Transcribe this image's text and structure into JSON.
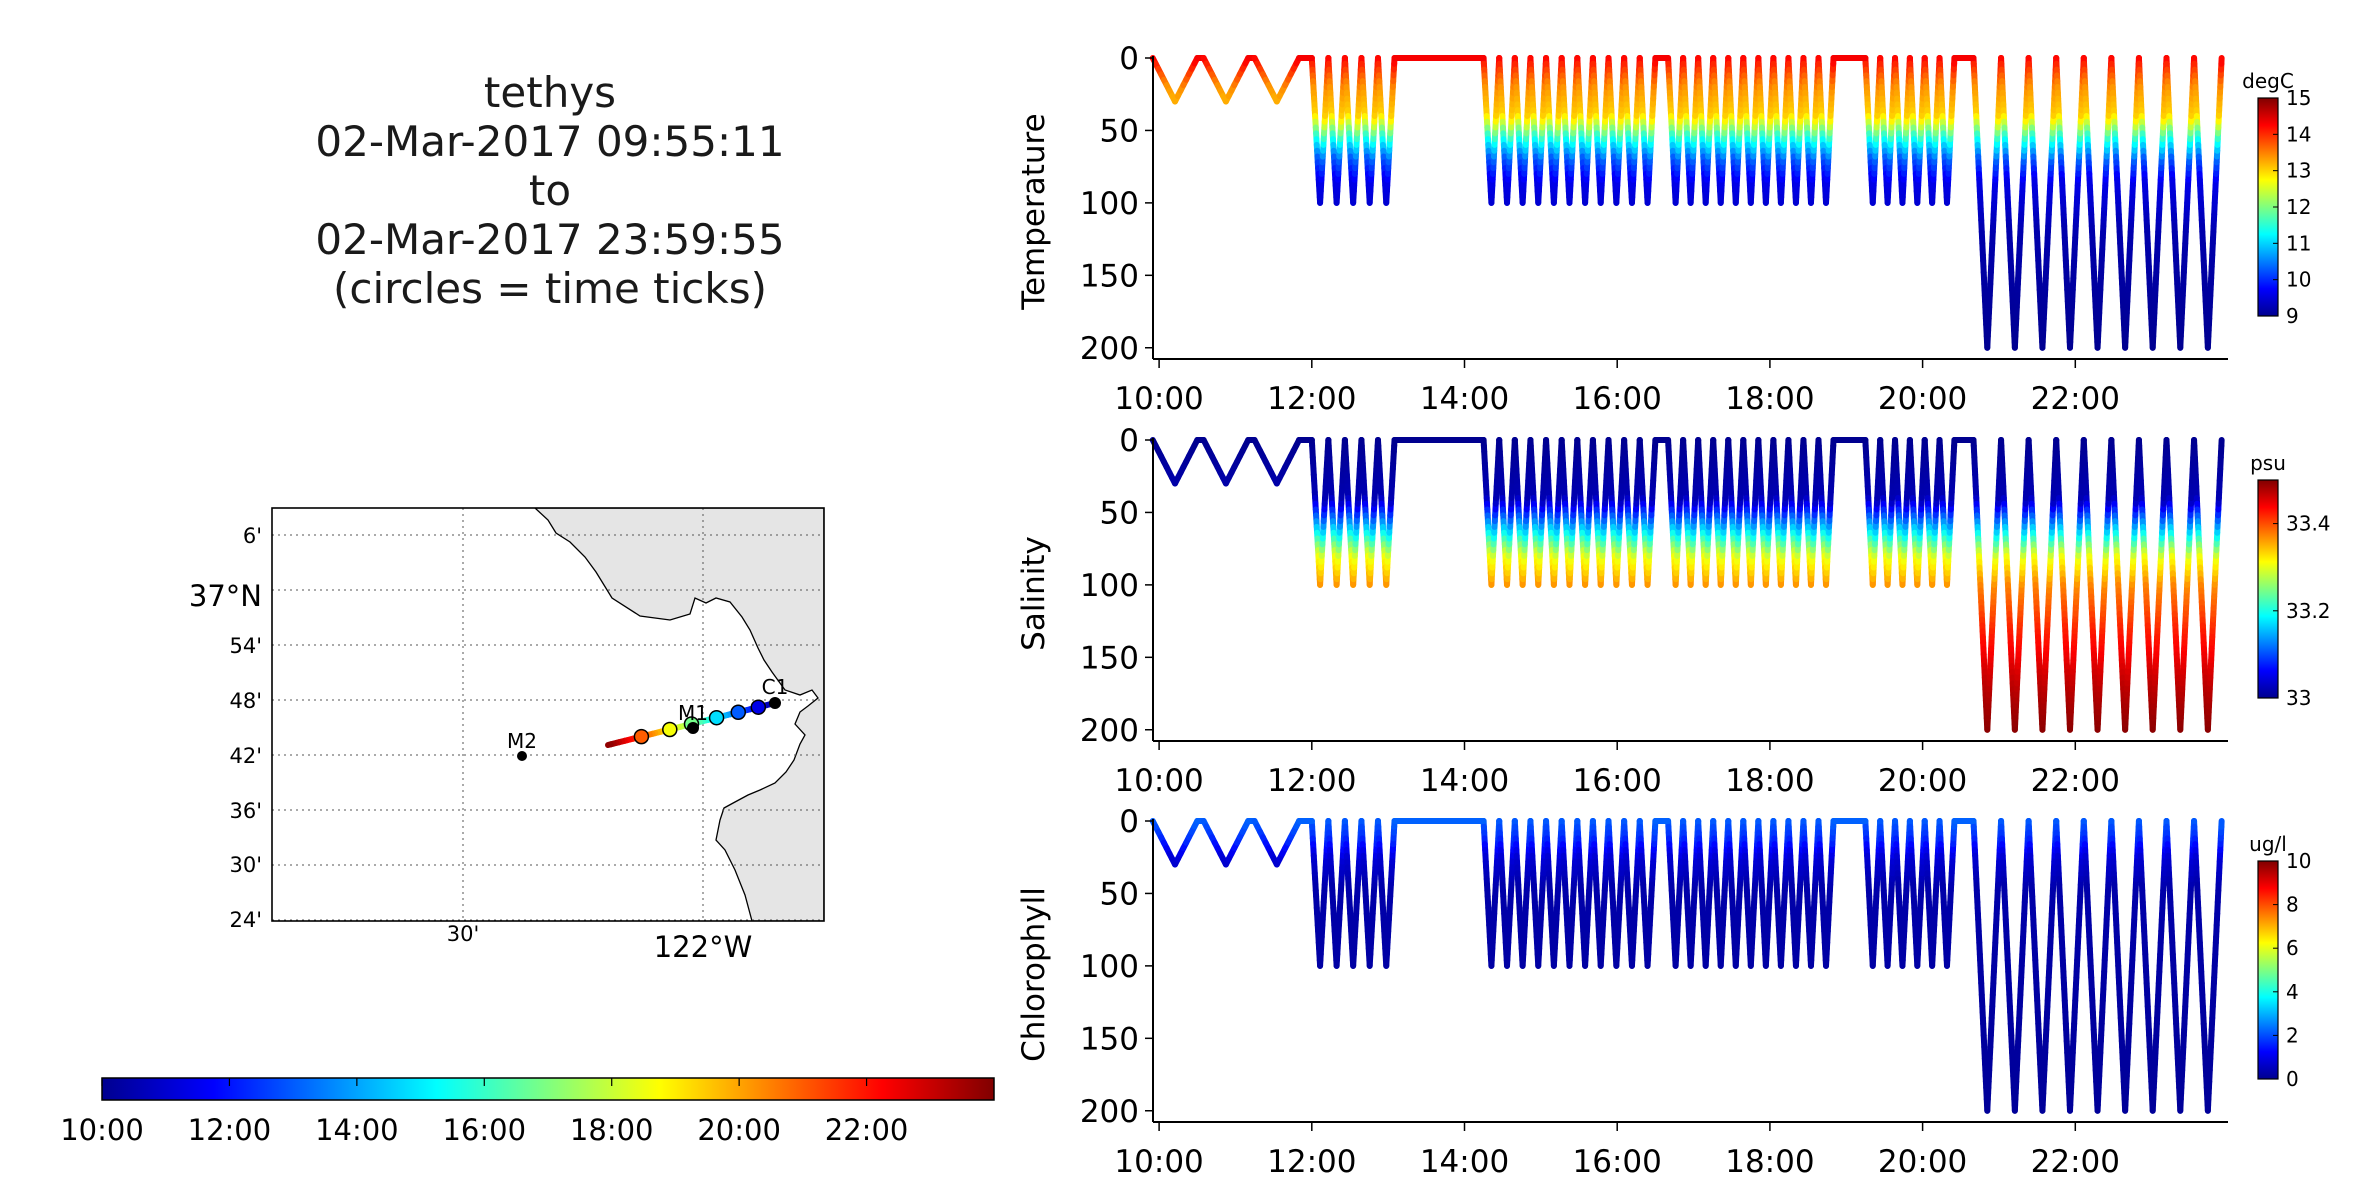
{
  "title_lines": [
    "tethys",
    "02-Mar-2017 09:55:11",
    "to",
    "02-Mar-2017 23:59:55",
    "(circles = time ticks)"
  ],
  "colors": {
    "land": "#e5e5e5",
    "track_markers": "#000000",
    "colormap": [
      "#00008f",
      "#0000ff",
      "#00ffff",
      "#ffff00",
      "#ff0000",
      "#800000"
    ]
  },
  "map": {
    "lat_ticks": [
      "6'",
      "37°N",
      "54'",
      "48'",
      "42'",
      "36'",
      "30'",
      "24'"
    ],
    "lon_ticks": [
      "30'",
      "122°W"
    ],
    "moorings": [
      {
        "name": "C1",
        "lon": -121.847,
        "lat": 36.797
      },
      {
        "name": "M1",
        "lon": -122.022,
        "lat": 36.747
      },
      {
        "name": "M2",
        "lon": -122.378,
        "lat": 36.697
      }
    ],
    "time_colorbar_ticks": [
      "10:00",
      "12:00",
      "14:00",
      "16:00",
      "18:00",
      "20:00",
      "22:00"
    ]
  },
  "chart_data": [
    {
      "type": "scatter",
      "ylabel": "Temperature",
      "units": "degC",
      "x_range": [
        "10:00",
        "24:00"
      ],
      "xticks": [
        "10:00",
        "12:00",
        "14:00",
        "16:00",
        "18:00",
        "20:00",
        "22:00"
      ],
      "ylim": [
        205,
        0
      ],
      "yticks": [
        0,
        50,
        100,
        150,
        200
      ],
      "clim": [
        9,
        15
      ],
      "cticks": [
        9,
        10,
        11,
        12,
        13,
        14,
        15
      ],
      "color_profile": [
        [
          0,
          14.3
        ],
        [
          20,
          13.4
        ],
        [
          40,
          13.0
        ],
        [
          55,
          11.5
        ],
        [
          70,
          10.3
        ],
        [
          85,
          9.6
        ],
        [
          120,
          9.2
        ],
        [
          205,
          9.0
        ]
      ]
    },
    {
      "type": "scatter",
      "ylabel": "Salinity",
      "units": "psu",
      "x_range": [
        "10:00",
        "24:00"
      ],
      "xticks": [
        "10:00",
        "12:00",
        "14:00",
        "16:00",
        "18:00",
        "20:00",
        "22:00"
      ],
      "ylim": [
        205,
        0
      ],
      "yticks": [
        0,
        50,
        100,
        150,
        200
      ],
      "clim": [
        33.0,
        33.5
      ],
      "cticks": [
        33,
        33.2,
        33.4
      ],
      "color_profile": [
        [
          0,
          33.0
        ],
        [
          40,
          33.02
        ],
        [
          60,
          33.15
        ],
        [
          80,
          33.3
        ],
        [
          100,
          33.37
        ],
        [
          130,
          33.42
        ],
        [
          170,
          33.47
        ],
        [
          205,
          33.5
        ]
      ]
    },
    {
      "type": "scatter",
      "ylabel": "Chlorophyll",
      "units": "ug/l",
      "x_range": [
        "10:00",
        "24:00"
      ],
      "xticks": [
        "10:00",
        "12:00",
        "14:00",
        "16:00",
        "18:00",
        "20:00",
        "22:00"
      ],
      "ylim": [
        205,
        0
      ],
      "yticks": [
        0,
        50,
        100,
        150,
        200
      ],
      "clim": [
        0,
        10
      ],
      "cticks": [
        0,
        2,
        4,
        6,
        8,
        10
      ],
      "color_profile": [
        [
          0,
          2.2
        ],
        [
          12,
          1.7
        ],
        [
          25,
          0.8
        ],
        [
          45,
          0.3
        ],
        [
          205,
          0.1
        ]
      ]
    }
  ],
  "dive_segments": [
    {
      "start": "09:55",
      "end": "10:30",
      "n": 1,
      "max_depth": 30
    },
    {
      "start": "10:35",
      "end": "11:10",
      "n": 1,
      "max_depth": 30
    },
    {
      "start": "11:15",
      "end": "11:50",
      "n": 1,
      "max_depth": 30
    },
    {
      "start": "12:00",
      "end": "13:05",
      "n": 5,
      "max_depth": 100
    },
    {
      "start": "14:15",
      "end": "16:30",
      "n": 11,
      "max_depth": 100
    },
    {
      "start": "16:40",
      "end": "18:50",
      "n": 11,
      "max_depth": 100
    },
    {
      "start": "19:15",
      "end": "20:25",
      "n": 6,
      "max_depth": 100
    },
    {
      "start": "20:40",
      "end": "23:55",
      "n": 9,
      "max_depth": 200
    }
  ],
  "surface_segments": [
    {
      "start": "11:50",
      "end": "12:00"
    },
    {
      "start": "13:05",
      "end": "13:12"
    },
    {
      "start": "13:33",
      "end": "13:38"
    },
    {
      "start": "14:03",
      "end": "14:15"
    },
    {
      "start": "16:30",
      "end": "16:40"
    },
    {
      "start": "18:50",
      "end": "19:15"
    },
    {
      "start": "20:25",
      "end": "20:40"
    }
  ]
}
